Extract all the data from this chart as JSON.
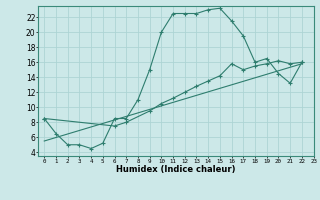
{
  "curve1_x": [
    0,
    1,
    2,
    3,
    4,
    5,
    6,
    7,
    8,
    9,
    10,
    11,
    12,
    13,
    14,
    15,
    16,
    17,
    18,
    19,
    20,
    21,
    22
  ],
  "curve1_y": [
    8.5,
    6.5,
    5.0,
    5.0,
    4.5,
    5.2,
    8.5,
    8.5,
    11.0,
    15.0,
    20.0,
    22.5,
    22.5,
    22.5,
    23.0,
    23.2,
    21.5,
    19.5,
    16.0,
    16.5,
    14.5,
    13.2,
    16.0
  ],
  "curve2_x": [
    0,
    6,
    7,
    9,
    10,
    11,
    12,
    13,
    14,
    15,
    16,
    17,
    18,
    19,
    20,
    21,
    22
  ],
  "curve2_y": [
    8.5,
    7.5,
    8.0,
    9.5,
    10.5,
    11.2,
    12.0,
    12.8,
    13.5,
    14.2,
    15.8,
    15.0,
    15.5,
    15.8,
    16.2,
    15.8,
    16.0
  ],
  "line_x": [
    0,
    22
  ],
  "line_y": [
    5.5,
    15.8
  ],
  "color": "#2e7d6e",
  "bg_color": "#cce8e8",
  "grid_color": "#add4d4",
  "xlabel": "Humidex (Indice chaleur)",
  "xlim": [
    -0.5,
    23
  ],
  "ylim": [
    3.5,
    23.5
  ],
  "yticks": [
    4,
    6,
    8,
    10,
    12,
    14,
    16,
    18,
    20,
    22
  ],
  "xticks": [
    0,
    1,
    2,
    3,
    4,
    5,
    6,
    7,
    8,
    9,
    10,
    11,
    12,
    13,
    14,
    15,
    16,
    17,
    18,
    19,
    20,
    21,
    22,
    23
  ]
}
